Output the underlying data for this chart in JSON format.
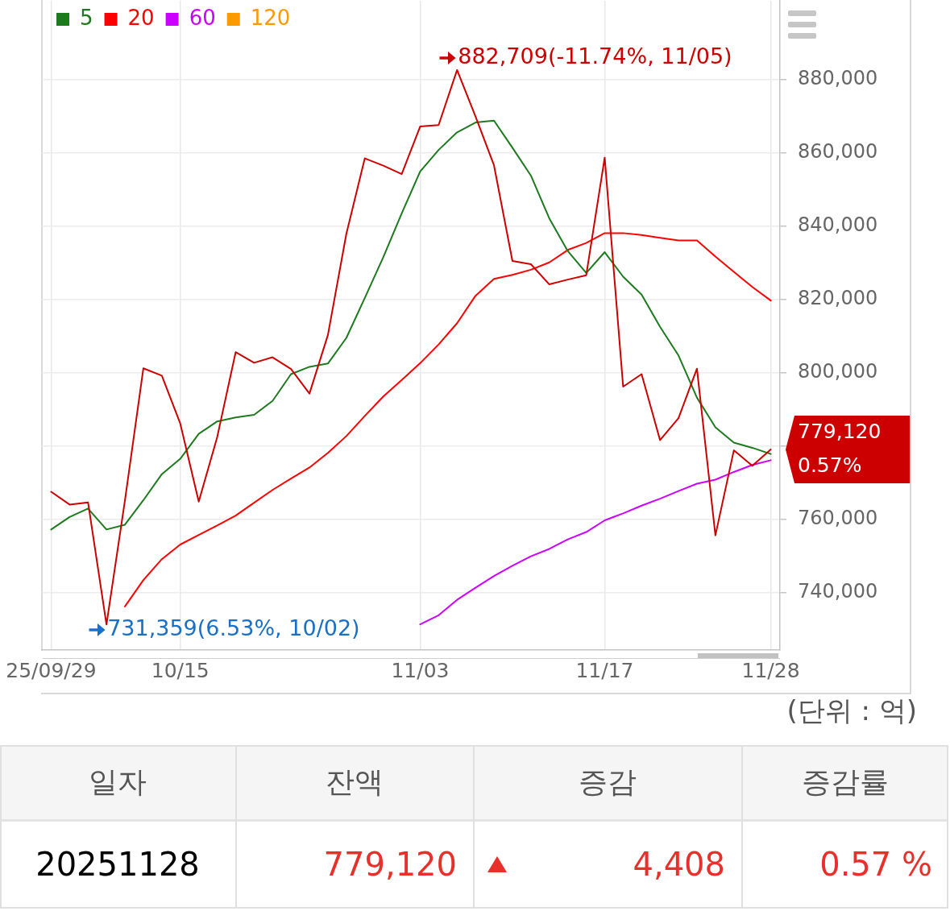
{
  "chart_data": [
    {
      "type": "line",
      "categories": [
        "25/09/29",
        null,
        null,
        null,
        null,
        null,
        null,
        "10/15",
        null,
        null,
        null,
        null,
        null,
        null,
        null,
        null,
        null,
        null,
        null,
        null,
        "11/03",
        null,
        null,
        null,
        null,
        null,
        null,
        null,
        null,
        null,
        "11/17",
        null,
        null,
        null,
        null,
        null,
        null,
        null,
        null,
        "11/28"
      ],
      "series": [
        {
          "color": "#cc0000",
          "values": [
            767600,
            764100,
            764700,
            731359,
            765200,
            801300,
            799300,
            786200,
            764900,
            782500,
            805700,
            802800,
            804300,
            801100,
            794400,
            810400,
            838000,
            858600,
            856600,
            854300,
            867300,
            867700,
            882709,
            870000,
            856700,
            830600,
            829700,
            824200,
            825500,
            826700,
            858800,
            796300,
            799700,
            781700,
            787700,
            801200,
            755700,
            778900,
            774700,
            779120
          ],
          "value_labels": [
            null,
            null,
            null,
            "731,359(6.53%, 10/02)",
            null,
            null,
            null,
            null,
            null,
            null,
            null,
            null,
            null,
            null,
            null,
            null,
            null,
            null,
            null,
            null,
            null,
            null,
            "882,709(-11.74%, 11/05)",
            null,
            null,
            null,
            null,
            null,
            null,
            null,
            null,
            null,
            null,
            null,
            null,
            null,
            null,
            null,
            null,
            "779,120\n0.57%"
          ]
        },
        {
          "name": "5",
          "color": "#1e7a1e",
          "values": [
            757300,
            760700,
            763000,
            757300,
            758600,
            765300,
            772400,
            776600,
            783400,
            786800,
            787900,
            788600,
            792400,
            799700,
            801700,
            802600,
            809600,
            820500,
            831600,
            843600,
            855000,
            860900,
            865700,
            868400,
            868900,
            861500,
            853900,
            842200,
            833300,
            827300,
            833000,
            826300,
            821400,
            812600,
            804800,
            793300,
            785200,
            781000,
            779600,
            777900
          ]
        },
        {
          "name": "20",
          "color": "#ff0000",
          "values": [
            null,
            null,
            null,
            null,
            736300,
            743500,
            749200,
            753200,
            755800,
            758400,
            761100,
            764600,
            768100,
            771200,
            774200,
            778200,
            782800,
            788300,
            793600,
            798100,
            802700,
            807800,
            813600,
            821100,
            825700,
            826800,
            828200,
            830200,
            833600,
            835500,
            838200,
            838200,
            837700,
            836900,
            836200,
            836200,
            831800,
            827600,
            823500,
            819800
          ]
        },
        {
          "name": "60",
          "color": "#cc00ff",
          "values": [
            null,
            null,
            null,
            null,
            null,
            null,
            null,
            null,
            null,
            null,
            null,
            null,
            null,
            null,
            null,
            null,
            null,
            null,
            null,
            null,
            731400,
            733900,
            738100,
            741400,
            744600,
            747400,
            750000,
            752000,
            754600,
            756600,
            759800,
            761700,
            763800,
            765700,
            767800,
            769800,
            770900,
            773000,
            774900,
            776200
          ]
        },
        {
          "name": "120",
          "color": "#ff9900",
          "values": [
            null,
            null,
            null,
            null,
            null,
            null,
            null,
            null,
            null,
            null,
            null,
            null,
            null,
            null,
            null,
            null,
            null,
            null,
            null,
            null,
            null,
            null,
            null,
            null,
            null,
            null,
            null,
            null,
            null,
            null,
            null,
            null,
            null,
            null,
            null,
            null,
            null,
            null,
            null,
            null
          ]
        }
      ],
      "ylim": [
        724400,
        901600
      ],
      "yticks": [
        {
          "value": 740000,
          "label": "740,000"
        },
        {
          "value": 760000,
          "label": "760,000"
        },
        {
          "value": 780000,
          "label": null
        },
        {
          "value": 800000,
          "label": "800,000"
        },
        {
          "value": 820000,
          "label": "820,000"
        },
        {
          "value": 840000,
          "label": "840,000"
        },
        {
          "value": 860000,
          "label": "860,000"
        },
        {
          "value": 880000,
          "label": "880,000"
        }
      ],
      "grid": true,
      "legend": "top left",
      "annotations": [
        "(단위 : 억)"
      ]
    },
    {
      "type": "other",
      "categories": [
        "일자",
        "잔액",
        "증감",
        "증감률"
      ],
      "value_labels": [
        "20251128",
        "779,120",
        "4,408",
        "0.57 %"
      ]
    }
  ]
}
